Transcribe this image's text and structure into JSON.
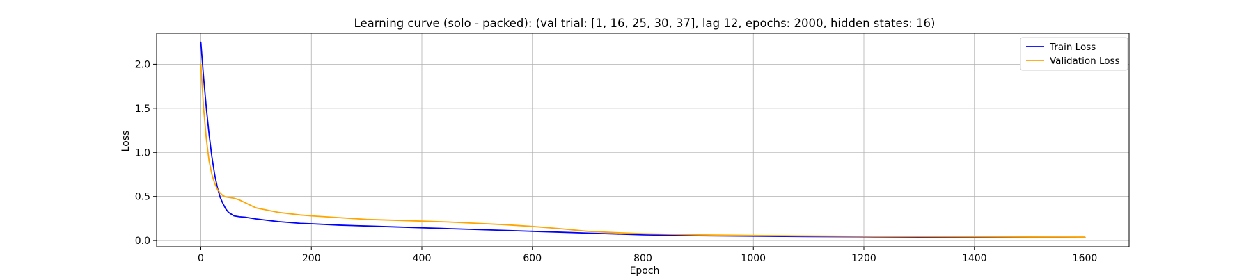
{
  "chart_data": {
    "type": "line",
    "title": "Learning curve (solo - packed): (val trial: [1, 16, 25, 30, 37], lag 12, epochs: 2000, hidden states: 16)",
    "xlabel": "Epoch",
    "ylabel": "Loss",
    "xlim": [
      -80,
      1680
    ],
    "ylim": [
      -0.07,
      2.35
    ],
    "xticks": [
      0,
      200,
      400,
      600,
      800,
      1000,
      1200,
      1400,
      1600
    ],
    "yticks": [
      0.0,
      0.5,
      1.0,
      1.5,
      2.0
    ],
    "grid": true,
    "legend_placement": "top-right",
    "series": [
      {
        "name": "Train Loss",
        "color": "#0000ff",
        "x": [
          0,
          5,
          10,
          15,
          20,
          25,
          30,
          35,
          40,
          45,
          50,
          55,
          60,
          70,
          80,
          90,
          100,
          120,
          140,
          160,
          180,
          200,
          250,
          300,
          350,
          400,
          450,
          500,
          550,
          600,
          650,
          700,
          750,
          800,
          850,
          900,
          1000,
          1100,
          1200,
          1300,
          1400,
          1500,
          1600
        ],
        "y": [
          2.25,
          1.85,
          1.5,
          1.2,
          0.95,
          0.75,
          0.6,
          0.49,
          0.42,
          0.36,
          0.32,
          0.3,
          0.28,
          0.27,
          0.265,
          0.255,
          0.245,
          0.23,
          0.215,
          0.205,
          0.195,
          0.19,
          0.175,
          0.165,
          0.155,
          0.145,
          0.135,
          0.125,
          0.115,
          0.105,
          0.095,
          0.085,
          0.075,
          0.065,
          0.06,
          0.055,
          0.05,
          0.045,
          0.043,
          0.04,
          0.038,
          0.036,
          0.035
        ]
      },
      {
        "name": "Validation Loss",
        "color": "#ffa500",
        "x": [
          0,
          5,
          10,
          15,
          20,
          25,
          30,
          35,
          40,
          45,
          50,
          55,
          60,
          70,
          80,
          90,
          100,
          120,
          140,
          160,
          180,
          200,
          250,
          300,
          350,
          400,
          450,
          500,
          550,
          600,
          650,
          700,
          750,
          800,
          850,
          900,
          1000,
          1100,
          1200,
          1300,
          1400,
          1500,
          1600
        ],
        "y": [
          2.0,
          1.5,
          1.15,
          0.9,
          0.75,
          0.65,
          0.58,
          0.54,
          0.51,
          0.495,
          0.49,
          0.485,
          0.48,
          0.46,
          0.43,
          0.4,
          0.37,
          0.345,
          0.32,
          0.305,
          0.29,
          0.28,
          0.26,
          0.24,
          0.23,
          0.22,
          0.21,
          0.195,
          0.18,
          0.16,
          0.135,
          0.105,
          0.09,
          0.078,
          0.072,
          0.065,
          0.058,
          0.052,
          0.048,
          0.045,
          0.043,
          0.041,
          0.04
        ]
      }
    ]
  }
}
